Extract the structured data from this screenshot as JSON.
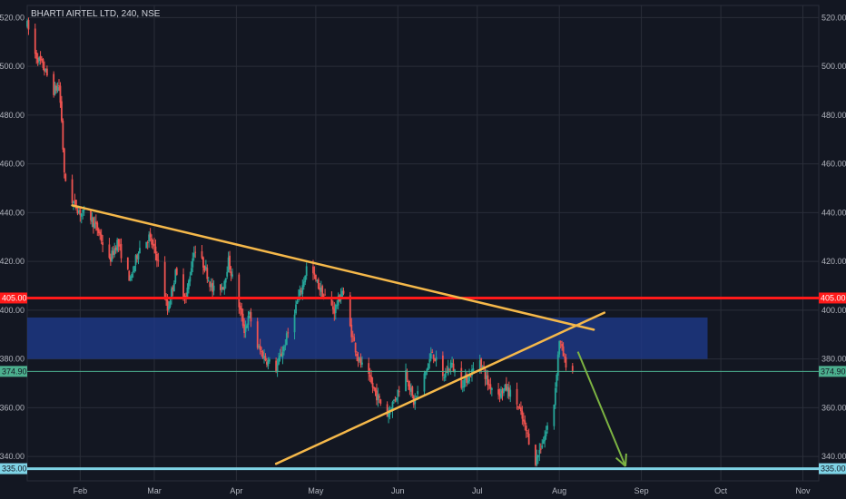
{
  "title": "BHARTI AIRTEL LTD, 240, NSE",
  "colors": {
    "background": "#131722",
    "grid": "#2a2e39",
    "up": "#26a69a",
    "down": "#ef5350",
    "axis_text": "#b2b5be",
    "resistance": "#ff1a1a",
    "support": "#7fd3e6",
    "current": "#4caf8e",
    "zone": "#1e3a8a",
    "trendline": "#f5b84a",
    "arrow": "#7cb342"
  },
  "chart_data": {
    "type": "candlestick",
    "title": "BHARTI AIRTEL LTD, 240, NSE",
    "ylim": [
      330,
      525
    ],
    "xlim": [
      "2018-01-12",
      "2018-11-07"
    ],
    "y_ticks": [
      "340.00",
      "360.00",
      "380.00",
      "400.00",
      "420.00",
      "440.00",
      "460.00",
      "480.00",
      "500.00",
      "520.00"
    ],
    "x_ticks": [
      {
        "label": "Feb",
        "date": "2018-02-01"
      },
      {
        "label": "Mar",
        "date": "2018-03-01"
      },
      {
        "label": "Apr",
        "date": "2018-04-01"
      },
      {
        "label": "May",
        "date": "2018-05-01"
      },
      {
        "label": "Jun",
        "date": "2018-06-01"
      },
      {
        "label": "Jul",
        "date": "2018-07-01"
      },
      {
        "label": "Aug",
        "date": "2018-08-01"
      },
      {
        "label": "Sep",
        "date": "2018-09-01"
      },
      {
        "label": "Oct",
        "date": "2018-10-01"
      },
      {
        "label": "Nov",
        "date": "2018-11-01"
      }
    ],
    "price_path": [
      [
        "2018-01-12",
        517
      ],
      [
        "2018-01-15",
        505
      ],
      [
        "2018-01-18",
        500
      ],
      [
        "2018-01-22",
        490
      ],
      [
        "2018-01-24",
        492
      ],
      [
        "2018-01-25",
        478
      ],
      [
        "2018-01-26",
        455
      ],
      [
        "2018-01-29",
        445
      ],
      [
        "2018-02-01",
        440
      ],
      [
        "2018-02-05",
        438
      ],
      [
        "2018-02-08",
        432
      ],
      [
        "2018-02-12",
        420
      ],
      [
        "2018-02-15",
        428
      ],
      [
        "2018-02-20",
        412
      ],
      [
        "2018-02-23",
        425
      ],
      [
        "2018-02-27",
        430
      ],
      [
        "2018-03-02",
        422
      ],
      [
        "2018-03-06",
        400
      ],
      [
        "2018-03-09",
        415
      ],
      [
        "2018-03-13",
        405
      ],
      [
        "2018-03-16",
        425
      ],
      [
        "2018-03-20",
        418
      ],
      [
        "2018-03-23",
        408
      ],
      [
        "2018-03-27",
        410
      ],
      [
        "2018-03-29",
        420
      ],
      [
        "2018-04-02",
        402
      ],
      [
        "2018-04-04",
        392
      ],
      [
        "2018-04-06",
        398
      ],
      [
        "2018-04-09",
        385
      ],
      [
        "2018-04-12",
        380
      ],
      [
        "2018-04-16",
        376
      ],
      [
        "2018-04-19",
        385
      ],
      [
        "2018-04-23",
        400
      ],
      [
        "2018-04-26",
        410
      ],
      [
        "2018-04-28",
        420
      ],
      [
        "2018-05-01",
        412
      ],
      [
        "2018-05-04",
        406
      ],
      [
        "2018-05-08",
        400
      ],
      [
        "2018-05-11",
        408
      ],
      [
        "2018-05-14",
        393
      ],
      [
        "2018-05-17",
        380
      ],
      [
        "2018-05-21",
        372
      ],
      [
        "2018-05-24",
        365
      ],
      [
        "2018-05-28",
        357
      ],
      [
        "2018-05-31",
        364
      ],
      [
        "2018-06-04",
        375
      ],
      [
        "2018-06-07",
        362
      ],
      [
        "2018-06-11",
        373
      ],
      [
        "2018-06-14",
        383
      ],
      [
        "2018-06-18",
        372
      ],
      [
        "2018-06-21",
        378
      ],
      [
        "2018-06-25",
        370
      ],
      [
        "2018-06-28",
        373
      ],
      [
        "2018-07-02",
        380
      ],
      [
        "2018-07-05",
        370
      ],
      [
        "2018-07-09",
        366
      ],
      [
        "2018-07-12",
        368
      ],
      [
        "2018-07-16",
        362
      ],
      [
        "2018-07-19",
        352
      ],
      [
        "2018-07-23",
        338
      ],
      [
        "2018-07-25",
        344
      ],
      [
        "2018-07-27",
        350
      ],
      [
        "2018-07-30",
        362
      ],
      [
        "2018-08-01",
        388
      ],
      [
        "2018-08-03",
        379
      ],
      [
        "2018-08-06",
        374.9
      ]
    ],
    "trendlines": [
      {
        "name": "descending",
        "from": [
          "2018-01-29",
          443
        ],
        "to": [
          "2018-08-14",
          392
        ]
      },
      {
        "name": "ascending",
        "from": [
          "2018-04-16",
          337
        ],
        "to": [
          "2018-08-18",
          399
        ]
      }
    ],
    "zones": [
      {
        "from": "2018-01-12",
        "to": "2018-09-26",
        "low": 380,
        "high": 397
      }
    ],
    "horizontal_levels": [
      {
        "value": 405,
        "label": "405.00",
        "role": "resistance"
      },
      {
        "value": 374.9,
        "label": "374.90",
        "role": "current"
      },
      {
        "value": 335,
        "label": "335.00",
        "role": "support"
      }
    ],
    "arrow": {
      "from": [
        "2018-08-08",
        383
      ],
      "to": [
        "2018-08-26",
        336
      ]
    }
  }
}
